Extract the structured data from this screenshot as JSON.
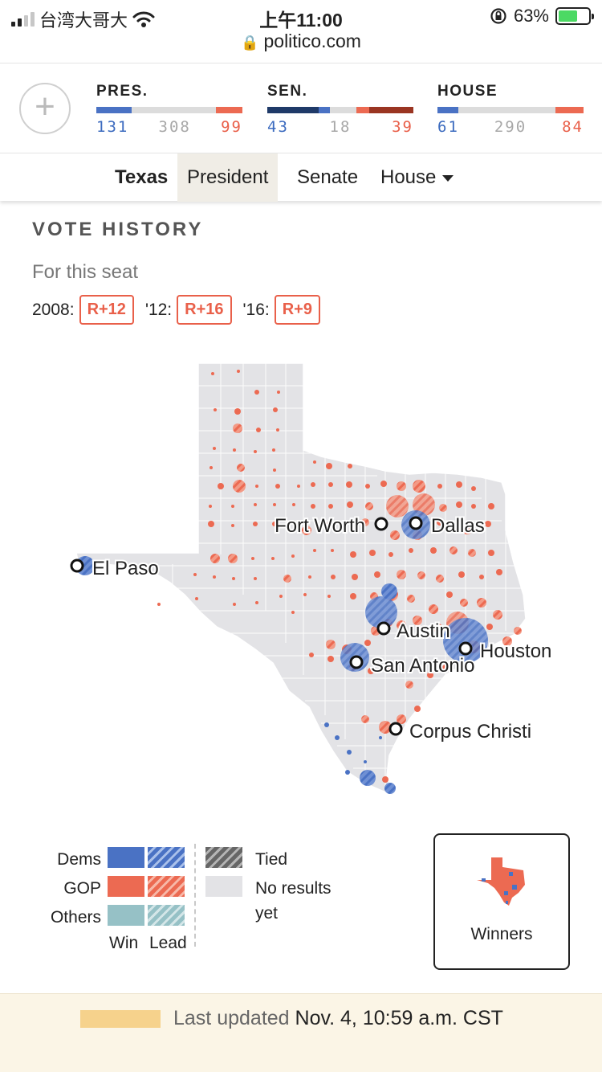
{
  "status_bar": {
    "carrier": "台湾大哥大",
    "time": "上午11:00",
    "battery": "63%",
    "battery_level": 0.63
  },
  "browser": {
    "url": "politico.com"
  },
  "results": {
    "add_label": "+",
    "races": [
      {
        "title": "PRES.",
        "dem": "131",
        "undecided": "308",
        "gop": "99",
        "segments": [
          [
            "#4a72c4",
            131
          ],
          [
            "#dcdcdc",
            308
          ],
          [
            "#ec6a52",
            99
          ]
        ]
      },
      {
        "title": "SEN.",
        "dem": "43",
        "undecided": "18",
        "gop": "39",
        "segments": [
          [
            "#1f3a68",
            35
          ],
          [
            "#4a72c4",
            8
          ],
          [
            "#dcdcdc",
            18
          ],
          [
            "#ec6a52",
            9
          ],
          [
            "#9a3522",
            30
          ]
        ]
      },
      {
        "title": "HOUSE",
        "dem": "61",
        "undecided": "290",
        "gop": "84",
        "segments": [
          [
            "#4a72c4",
            61
          ],
          [
            "#dcdcdc",
            290
          ],
          [
            "#ec6a52",
            84
          ]
        ]
      }
    ]
  },
  "tabs": {
    "state": "Texas",
    "president": "President",
    "senate": "Senate",
    "house": "House"
  },
  "vote_history": {
    "title": "VOTE HISTORY",
    "subtitle": "For this seat",
    "items": [
      {
        "label": "2008:",
        "value": "R+12"
      },
      {
        "label": "'12:",
        "value": "R+16"
      },
      {
        "label": "'16:",
        "value": "R+9"
      }
    ]
  },
  "map": {
    "cities": [
      "Fort Worth",
      "Dallas",
      "El Paso",
      "Austin",
      "Houston",
      "San Antonio",
      "Corpus Christi"
    ]
  },
  "legend": {
    "dems": "Dems",
    "gop": "GOP",
    "others": "Others",
    "win": "Win",
    "lead": "Lead",
    "tied": "Tied",
    "no_results_1": "No results",
    "no_results_2": "yet"
  },
  "winners": {
    "label": "Winners"
  },
  "footer": {
    "prefix": "Last updated",
    "timestamp": "Nov. 4, 10:59 a.m. CST"
  },
  "colors": {
    "dem": "#4a72c4",
    "gop": "#ec6a52",
    "other": "#96c1c6",
    "no_results": "#e3e3e6"
  }
}
